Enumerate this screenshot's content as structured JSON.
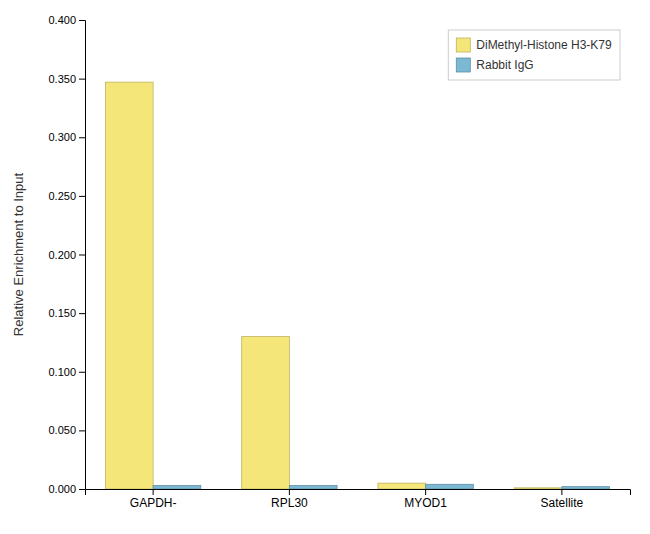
{
  "chart_data": {
    "type": "bar",
    "categories": [
      "GAPDH-",
      "RPL30",
      "MYOD1",
      "Satellite"
    ],
    "series": [
      {
        "name": "DiMethyl-Histone H3-K79",
        "color": "#F5E67A",
        "values": [
          0.347,
          0.13,
          0.005,
          0.001
        ]
      },
      {
        "name": "Rabbit IgG",
        "color": "#7AB8D4",
        "values": [
          0.003,
          0.003,
          0.004,
          0.002
        ]
      }
    ],
    "ylabel": "Relative Enrichment to Input",
    "ylim": [
      0,
      0.4
    ],
    "yticks": [
      {
        "value": 0.0,
        "label": "0.000"
      },
      {
        "value": 0.05,
        "label": "0.050"
      },
      {
        "value": 0.1,
        "label": "0.100"
      },
      {
        "value": 0.15,
        "label": "0.150"
      },
      {
        "value": 0.2,
        "label": "0.200"
      },
      {
        "value": 0.25,
        "label": "0.250"
      },
      {
        "value": 0.3,
        "label": "0.300"
      },
      {
        "value": 0.35,
        "label": "0.350"
      },
      {
        "value": 0.4,
        "label": "0.400"
      }
    ],
    "grid": false,
    "legend": "upper right"
  }
}
